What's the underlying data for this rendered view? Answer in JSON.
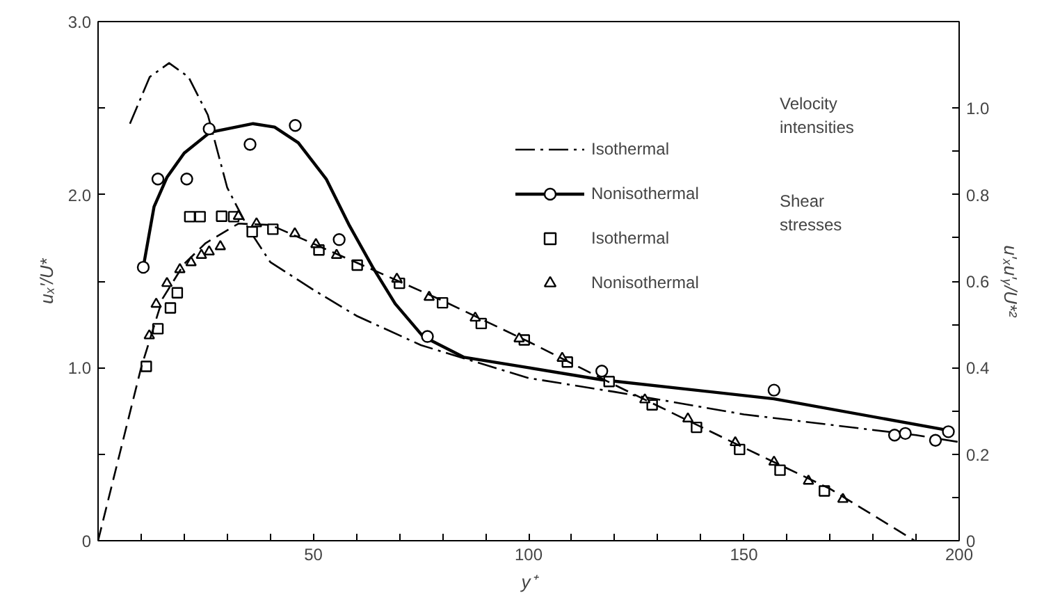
{
  "chart_data": {
    "type": "line",
    "xlabel": "y⁺",
    "ylabel": "uₓ′/U*",
    "y2label": "u′ₓu′ᵧ/U*²",
    "annotations": [
      "Velocity intensities",
      "Shear stresses"
    ],
    "xlim": [
      0,
      200
    ],
    "ylim": [
      0,
      3.0
    ],
    "y2lim": [
      0,
      1.2
    ],
    "xticks": [
      {
        "value": 0,
        "label": null
      },
      {
        "value": 10,
        "label": null
      },
      {
        "value": 20,
        "label": null
      },
      {
        "value": 30,
        "label": null
      },
      {
        "value": 40,
        "label": null
      },
      50,
      {
        "value": 60,
        "label": null
      },
      {
        "value": 70,
        "label": null
      },
      {
        "value": 80,
        "label": null
      },
      {
        "value": 90,
        "label": null
      },
      100,
      {
        "value": 110,
        "label": null
      },
      {
        "value": 120,
        "label": null
      },
      {
        "value": 130,
        "label": null
      },
      {
        "value": 140,
        "label": null
      },
      150,
      {
        "value": 160,
        "label": null
      },
      {
        "value": 170,
        "label": null
      },
      {
        "value": 180,
        "label": null
      },
      {
        "value": 190,
        "label": null
      },
      200
    ],
    "yticks": [
      0,
      {
        "value": 0.5,
        "label": null
      },
      {
        "value": 1,
        "label": "1.0"
      },
      {
        "value": 1.5,
        "label": null
      },
      {
        "value": 2,
        "label": "2.0"
      },
      {
        "value": 2.5,
        "label": null
      },
      {
        "value": 3,
        "label": "3.0"
      }
    ],
    "y2ticks": [
      0,
      {
        "value": 0.1,
        "label": null
      },
      0.2,
      {
        "value": 0.3,
        "label": null
      },
      0.4,
      {
        "value": 0.5,
        "label": null
      },
      0.6,
      {
        "value": 0.7,
        "label": null
      },
      0.8,
      {
        "value": 0.9,
        "label": null
      },
      {
        "value": 1,
        "label": "1.0"
      }
    ],
    "grid": false,
    "legend": "top right",
    "series": [
      {
        "name": "Isothermal",
        "line_style": "dashdot",
        "color": "#000000",
        "x": [
          7.4,
          12,
          16.5,
          21,
          25.5,
          30,
          35,
          40,
          50,
          60,
          75,
          100,
          120,
          150,
          190,
          200
        ],
        "values": [
          2.41,
          2.68,
          2.76,
          2.68,
          2.46,
          2.04,
          1.8,
          1.61,
          1.45,
          1.3,
          1.13,
          0.94,
          0.86,
          0.73,
          0.61,
          0.57
        ]
      },
      {
        "name": "Nonisothermal",
        "line_style": "solid",
        "color": "#000000",
        "x": [
          10.5,
          13,
          16,
          20,
          26,
          36,
          41,
          46.5,
          53,
          58.4,
          63.8,
          69,
          75.5,
          85,
          100,
          117,
          157,
          197
        ],
        "values": [
          1.58,
          1.93,
          2.1,
          2.24,
          2.36,
          2.41,
          2.39,
          2.3,
          2.09,
          1.82,
          1.58,
          1.37,
          1.18,
          1.06,
          1.0,
          0.93,
          0.82,
          0.64
        ]
      },
      {
        "type": "scatter",
        "marker": "circle",
        "color": "#000000",
        "x": [
          10.5,
          13.9,
          20.6,
          25.8,
          35.3,
          45.8,
          56,
          76.5,
          117,
          157,
          185,
          187.5,
          194.5,
          197.5
        ],
        "values": [
          1.58,
          2.09,
          2.09,
          2.38,
          2.29,
          2.4,
          1.74,
          1.18,
          0.98,
          0.87,
          0.61,
          0.62,
          0.58,
          0.63
        ]
      },
      {
        "name": "Isothermal",
        "type": "scatter",
        "marker": "square",
        "axis": "y2",
        "color": "#000000",
        "x": [
          11.2,
          13.9,
          16.8,
          18.4,
          21.3,
          23.7,
          28.7,
          31.5,
          35.8,
          40.6,
          51.3,
          60.2,
          70,
          80,
          89,
          99,
          109,
          118.7,
          128.7,
          139,
          149,
          158.4,
          168.7
        ],
        "values": [
          0.403,
          0.49,
          0.538,
          0.573,
          0.749,
          0.749,
          0.75,
          0.749,
          0.714,
          0.72,
          0.672,
          0.637,
          0.595,
          0.55,
          0.502,
          0.464,
          0.413,
          0.368,
          0.314,
          0.262,
          0.211,
          0.163,
          0.115
        ]
      },
      {
        "name": "Nonisothermal",
        "type": "scatter",
        "marker": "triangle",
        "axis": "y2",
        "color": "#000000",
        "x": [
          11.9,
          13.5,
          16,
          19,
          21.6,
          24,
          25.8,
          28.4,
          32.6,
          36.8,
          45.7,
          50.6,
          55.4,
          69.4,
          76.9,
          87.6,
          97.8,
          107.8,
          127,
          137,
          148,
          157,
          165,
          173
        ],
        "values": [
          0.474,
          0.547,
          0.595,
          0.627,
          0.643,
          0.66,
          0.668,
          0.68,
          0.75,
          0.733,
          0.71,
          0.685,
          0.66,
          0.605,
          0.563,
          0.515,
          0.467,
          0.422,
          0.326,
          0.282,
          0.227,
          0.182,
          0.138,
          0.096
        ]
      },
      {
        "line_style": "dashed",
        "axis": "y2",
        "color": "#000000",
        "x": [
          0,
          10,
          15,
          20,
          25,
          32.6,
          40,
          60,
          80,
          100,
          120,
          150,
          170,
          189.7
        ],
        "values": [
          0,
          0.4,
          0.56,
          0.64,
          0.688,
          0.733,
          0.73,
          0.643,
          0.555,
          0.46,
          0.36,
          0.215,
          0.12,
          0
        ]
      }
    ]
  }
}
